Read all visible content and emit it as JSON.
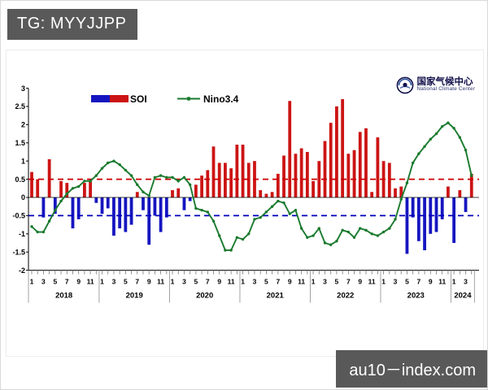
{
  "header": {
    "tag_label": "TG: MYYJJPP"
  },
  "watermark": {
    "text": "au10－index.com"
  },
  "logo": {
    "name_cn": "国家气候中心",
    "name_en": "National Climate Center"
  },
  "legend": {
    "soi_label": "SOI",
    "nino_label": "Nino3.4"
  },
  "colors": {
    "soi_positive": "#cc1414",
    "soi_negative": "#1515c0",
    "nino_line": "#1a7a2e",
    "ref_line_pos": "#cc0000",
    "ref_line_neg": "#0000bb",
    "axis": "#000000",
    "badge_bg": "#595959"
  },
  "chart_data": {
    "type": "bar",
    "title": "",
    "xlabel": "",
    "ylabel": "",
    "ylim": [
      -2,
      3
    ],
    "ytick_step": 0.5,
    "ytick_labels": [
      "3",
      "2.5",
      "2",
      "1.5",
      "1",
      "0.5",
      "0",
      "-0.5",
      "-1",
      "-1.5",
      "-2"
    ],
    "ref_lines": [
      0.5,
      -0.5
    ],
    "grid": false,
    "legend_position": "top-left-inside",
    "years": [
      "2018",
      "2019",
      "2020",
      "2021",
      "2022",
      "2023",
      "2024"
    ],
    "months_per_year": [
      12,
      12,
      12,
      12,
      12,
      12,
      4
    ],
    "month_tick_labels": [
      "1",
      "3",
      "5",
      "7",
      "9",
      "11"
    ],
    "series": [
      {
        "name": "SOI",
        "type": "bar",
        "values": [
          0.7,
          0.5,
          -0.55,
          1.05,
          -0.45,
          0.45,
          0.4,
          -0.85,
          -0.6,
          0.4,
          0.45,
          -0.15,
          -0.45,
          -0.3,
          -1.05,
          -0.85,
          -0.95,
          -0.75,
          0.15,
          -0.35,
          -1.3,
          -0.5,
          -0.95,
          -0.55,
          0.2,
          0.25,
          -0.35,
          -0.1,
          0.35,
          0.6,
          0.75,
          1.4,
          0.95,
          0.95,
          0.8,
          1.45,
          1.45,
          0.95,
          1.0,
          0.2,
          0.1,
          0.15,
          0.65,
          1.15,
          2.65,
          1.2,
          1.35,
          1.25,
          0.45,
          1.0,
          1.55,
          2.05,
          2.5,
          2.7,
          1.2,
          1.3,
          1.8,
          1.9,
          0.15,
          1.65,
          1.0,
          0.95,
          0.25,
          0.3,
          -1.55,
          -0.55,
          -1.2,
          -1.45,
          -1.0,
          -0.95,
          -0.6,
          0.3,
          -1.25,
          0.2,
          -0.4,
          0.65
        ]
      },
      {
        "name": "Nino3.4",
        "type": "line",
        "values": [
          -0.8,
          -0.95,
          -0.95,
          -0.65,
          -0.35,
          -0.1,
          0.1,
          0.25,
          0.3,
          0.45,
          0.45,
          0.6,
          0.8,
          0.95,
          1.0,
          0.9,
          0.75,
          0.6,
          0.35,
          0.15,
          0.05,
          0.55,
          0.6,
          0.55,
          0.55,
          0.45,
          0.55,
          0.35,
          -0.3,
          -0.35,
          -0.4,
          -0.65,
          -1.05,
          -1.45,
          -1.45,
          -1.1,
          -1.15,
          -1.0,
          -0.6,
          -0.55,
          -0.4,
          -0.25,
          -0.1,
          -0.15,
          -0.45,
          -0.35,
          -0.85,
          -1.1,
          -1.05,
          -0.85,
          -1.25,
          -1.3,
          -1.2,
          -0.9,
          -0.95,
          -1.1,
          -0.85,
          -0.9,
          -1.0,
          -1.05,
          -0.95,
          -0.85,
          -0.6,
          -0.05,
          0.4,
          0.95,
          1.2,
          1.4,
          1.6,
          1.75,
          1.95,
          2.05,
          1.9,
          1.65,
          1.3,
          0.6
        ]
      }
    ]
  }
}
